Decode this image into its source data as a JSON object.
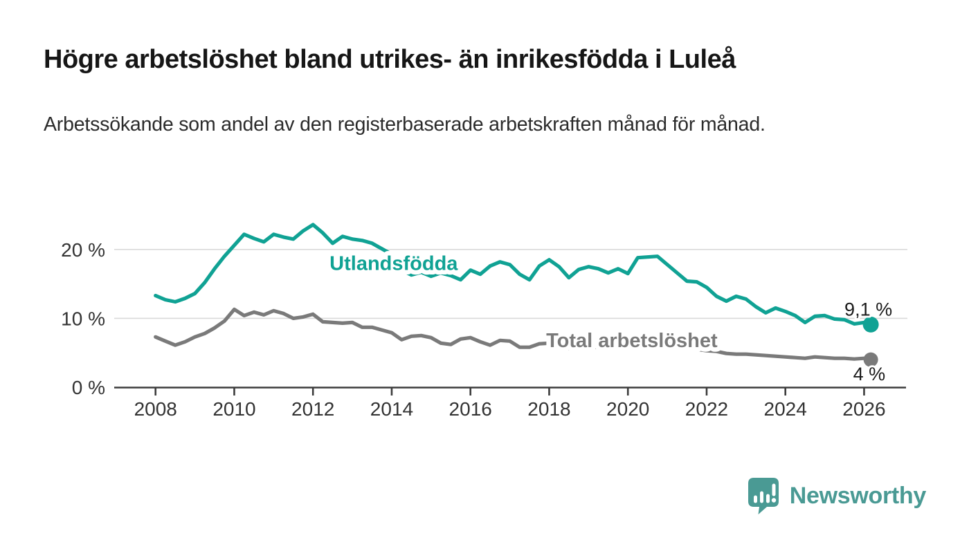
{
  "header": {
    "title": "Högre arbetslöshet bland utrikes- än inrikesfödda i Luleå",
    "subtitle": "Arbetssökande som andel av den registerbaserade arbetskraften månad för månad."
  },
  "footer": {
    "brand": "Newsworthy"
  },
  "colors": {
    "series_foreign": "#10a294",
    "series_total": "#7a7a7a",
    "grid": "#d9d9d9",
    "axis": "#3c3c3c",
    "tick_text": "#333333",
    "end_label_text": "#1a1a1a",
    "brand": "#4a9a94",
    "background": "#ffffff"
  },
  "chart_data": {
    "type": "line",
    "title": "Högre arbetslöshet bland utrikes- än inrikesfödda i Luleå",
    "subtitle": "Arbetssökande som andel av den registerbaserade arbetskraften månad för månad.",
    "xlabel": "",
    "ylabel": "",
    "unit": "%",
    "grid": "horizontal",
    "legend_position": "inline-labels",
    "xlim": [
      2006.95,
      2027.1
    ],
    "ylim": [
      0,
      25.5
    ],
    "x_ticks": [
      {
        "value": 2008,
        "label": "2008"
      },
      {
        "value": 2010,
        "label": "2010"
      },
      {
        "value": 2012,
        "label": "2012"
      },
      {
        "value": 2014,
        "label": "2014"
      },
      {
        "value": 2016,
        "label": "2016"
      },
      {
        "value": 2018,
        "label": "2018"
      },
      {
        "value": 2020,
        "label": "2020"
      },
      {
        "value": 2022,
        "label": "2022"
      },
      {
        "value": 2024,
        "label": "2024"
      },
      {
        "value": 2026,
        "label": "2026"
      }
    ],
    "y_ticks": [
      {
        "value": 0,
        "label": "0 %"
      },
      {
        "value": 10,
        "label": "10 %"
      },
      {
        "value": 20,
        "label": "20 %"
      }
    ],
    "series": [
      {
        "name": "Total arbetslöshet",
        "color": "#7a7a7a",
        "line_width": 5.2,
        "dot_radius": 10.5,
        "label_pos": [
          2020.1,
          5.8
        ],
        "end_label": {
          "text": "4 %",
          "dx": 21,
          "dy": 30,
          "anchor": "end"
        },
        "points": [
          [
            2008.0,
            7.3
          ],
          [
            2008.25,
            6.7
          ],
          [
            2008.5,
            6.1
          ],
          [
            2008.75,
            6.6
          ],
          [
            2009.0,
            7.3
          ],
          [
            2009.25,
            7.8
          ],
          [
            2009.5,
            8.6
          ],
          [
            2009.75,
            9.6
          ],
          [
            2010.0,
            11.3
          ],
          [
            2010.25,
            10.4
          ],
          [
            2010.5,
            10.9
          ],
          [
            2010.75,
            10.5
          ],
          [
            2011.0,
            11.1
          ],
          [
            2011.25,
            10.7
          ],
          [
            2011.5,
            10.0
          ],
          [
            2011.75,
            10.2
          ],
          [
            2012.0,
            10.6
          ],
          [
            2012.25,
            9.5
          ],
          [
            2012.5,
            9.4
          ],
          [
            2012.75,
            9.3
          ],
          [
            2013.0,
            9.4
          ],
          [
            2013.25,
            8.7
          ],
          [
            2013.5,
            8.7
          ],
          [
            2013.75,
            8.3
          ],
          [
            2014.0,
            7.9
          ],
          [
            2014.25,
            6.9
          ],
          [
            2014.5,
            7.4
          ],
          [
            2014.75,
            7.5
          ],
          [
            2015.0,
            7.2
          ],
          [
            2015.25,
            6.4
          ],
          [
            2015.5,
            6.2
          ],
          [
            2015.75,
            7.0
          ],
          [
            2016.0,
            7.2
          ],
          [
            2016.25,
            6.6
          ],
          [
            2016.5,
            6.1
          ],
          [
            2016.75,
            6.8
          ],
          [
            2017.0,
            6.7
          ],
          [
            2017.25,
            5.8
          ],
          [
            2017.5,
            5.8
          ],
          [
            2017.75,
            6.3
          ],
          [
            2018.0,
            6.4
          ],
          [
            2018.25,
            5.9
          ],
          [
            2018.5,
            5.6
          ],
          [
            2018.75,
            6.0
          ],
          [
            2019.0,
            6.1
          ],
          [
            2019.25,
            5.7
          ],
          [
            2019.5,
            5.6
          ],
          [
            2019.75,
            5.9
          ],
          [
            2020.0,
            6.0
          ],
          [
            2020.25,
            6.8
          ],
          [
            2020.5,
            6.9
          ],
          [
            2020.75,
            6.6
          ],
          [
            2021.0,
            6.3
          ],
          [
            2021.25,
            5.9
          ],
          [
            2021.5,
            5.6
          ],
          [
            2021.75,
            5.5
          ],
          [
            2022.0,
            5.3
          ],
          [
            2022.25,
            5.2
          ],
          [
            2022.5,
            4.9
          ],
          [
            2022.75,
            4.8
          ],
          [
            2023.0,
            4.8
          ],
          [
            2023.25,
            4.7
          ],
          [
            2023.5,
            4.6
          ],
          [
            2023.75,
            4.5
          ],
          [
            2024.0,
            4.4
          ],
          [
            2024.25,
            4.3
          ],
          [
            2024.5,
            4.2
          ],
          [
            2024.75,
            4.4
          ],
          [
            2025.0,
            4.3
          ],
          [
            2025.25,
            4.2
          ],
          [
            2025.5,
            4.2
          ],
          [
            2025.75,
            4.1
          ],
          [
            2026.0,
            4.2
          ],
          [
            2026.17,
            4.0
          ]
        ]
      },
      {
        "name": "Utlandsfödda",
        "color": "#10a294",
        "line_width": 5.2,
        "dot_radius": 11.5,
        "label_pos": [
          2014.05,
          17.0
        ],
        "end_label": {
          "text": "9,1 %",
          "dx": 31,
          "dy": -13,
          "anchor": "end"
        },
        "points": [
          [
            2008.0,
            13.3
          ],
          [
            2008.25,
            12.7
          ],
          [
            2008.5,
            12.4
          ],
          [
            2008.75,
            12.9
          ],
          [
            2009.0,
            13.6
          ],
          [
            2009.25,
            15.2
          ],
          [
            2009.5,
            17.2
          ],
          [
            2009.75,
            19.0
          ],
          [
            2010.0,
            20.6
          ],
          [
            2010.25,
            22.2
          ],
          [
            2010.5,
            21.6
          ],
          [
            2010.75,
            21.1
          ],
          [
            2011.0,
            22.2
          ],
          [
            2011.25,
            21.8
          ],
          [
            2011.5,
            21.5
          ],
          [
            2011.75,
            22.7
          ],
          [
            2012.0,
            23.6
          ],
          [
            2012.25,
            22.4
          ],
          [
            2012.5,
            20.9
          ],
          [
            2012.75,
            21.9
          ],
          [
            2013.0,
            21.5
          ],
          [
            2013.25,
            21.3
          ],
          [
            2013.5,
            20.9
          ],
          [
            2013.75,
            20.1
          ],
          [
            2014.0,
            19.3
          ],
          [
            2014.25,
            17.0
          ],
          [
            2014.5,
            16.3
          ],
          [
            2014.75,
            16.7
          ],
          [
            2015.0,
            16.1
          ],
          [
            2015.25,
            16.6
          ],
          [
            2015.5,
            16.2
          ],
          [
            2015.75,
            15.6
          ],
          [
            2016.0,
            17.0
          ],
          [
            2016.25,
            16.4
          ],
          [
            2016.5,
            17.6
          ],
          [
            2016.75,
            18.2
          ],
          [
            2017.0,
            17.8
          ],
          [
            2017.25,
            16.4
          ],
          [
            2017.5,
            15.6
          ],
          [
            2017.75,
            17.6
          ],
          [
            2018.0,
            18.5
          ],
          [
            2018.25,
            17.5
          ],
          [
            2018.5,
            15.9
          ],
          [
            2018.75,
            17.1
          ],
          [
            2019.0,
            17.5
          ],
          [
            2019.25,
            17.2
          ],
          [
            2019.5,
            16.6
          ],
          [
            2019.75,
            17.2
          ],
          [
            2020.0,
            16.5
          ],
          [
            2020.25,
            18.8
          ],
          [
            2020.5,
            18.9
          ],
          [
            2020.75,
            19.0
          ],
          [
            2021.0,
            17.8
          ],
          [
            2021.25,
            16.6
          ],
          [
            2021.5,
            15.4
          ],
          [
            2021.75,
            15.3
          ],
          [
            2022.0,
            14.5
          ],
          [
            2022.25,
            13.2
          ],
          [
            2022.5,
            12.5
          ],
          [
            2022.75,
            13.2
          ],
          [
            2023.0,
            12.8
          ],
          [
            2023.25,
            11.7
          ],
          [
            2023.5,
            10.8
          ],
          [
            2023.75,
            11.5
          ],
          [
            2024.0,
            11.0
          ],
          [
            2024.25,
            10.4
          ],
          [
            2024.5,
            9.4
          ],
          [
            2024.75,
            10.3
          ],
          [
            2025.0,
            10.4
          ],
          [
            2025.25,
            9.9
          ],
          [
            2025.5,
            9.8
          ],
          [
            2025.75,
            9.2
          ],
          [
            2026.0,
            9.4
          ],
          [
            2026.17,
            9.1
          ]
        ]
      }
    ]
  }
}
